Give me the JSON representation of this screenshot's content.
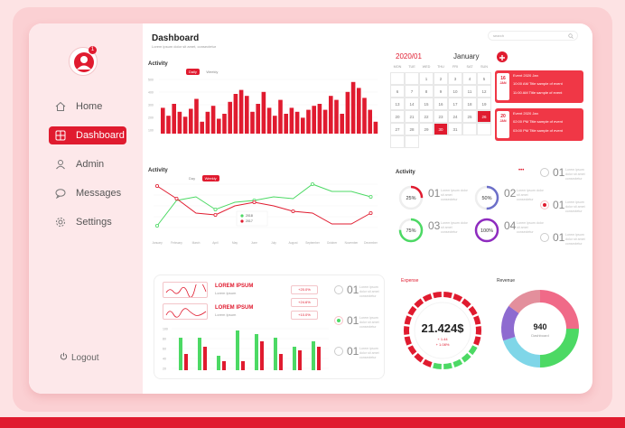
{
  "sidebar": {
    "avatar_badge": "1",
    "items": [
      {
        "label": "Home",
        "icon": "home-icon"
      },
      {
        "label": "Dashboard",
        "icon": "grid-icon"
      },
      {
        "label": "Admin",
        "icon": "user-icon"
      },
      {
        "label": "Messages",
        "icon": "chat-icon"
      },
      {
        "label": "Settings",
        "icon": "gear-icon"
      }
    ],
    "logout": "Logout"
  },
  "header": {
    "title": "Dashboard",
    "subtitle": "Lorem ipsum dolor sit amet, consectetur",
    "search_placeholder": "search"
  },
  "activity_bar": {
    "title": "Activity",
    "toggle": [
      "Daily",
      "Weekly"
    ],
    "y_ticks": [
      "500",
      "400",
      "300",
      "200",
      "100"
    ]
  },
  "activity_line": {
    "title": "Activity",
    "toggle": [
      "Day",
      "Weekly"
    ],
    "x_labels": [
      "January",
      "February",
      "March",
      "April",
      "May",
      "June",
      "July",
      "August",
      "September",
      "October",
      "November",
      "December"
    ],
    "legend": [
      "2018",
      "2017"
    ]
  },
  "calendar": {
    "year_month": "2020/01",
    "month": "January",
    "weekdays": [
      "MON",
      "TUE",
      "WED",
      "THU",
      "FRI",
      "SAT",
      "SUN"
    ],
    "days": [
      "",
      "",
      "1",
      "2",
      "3",
      "4",
      "5",
      "6",
      "7",
      "8",
      "9",
      "10",
      "11",
      "12",
      "13",
      "14",
      "15",
      "16",
      "17",
      "18",
      "19",
      "20",
      "21",
      "22",
      "23",
      "24",
      "25",
      "26",
      "27",
      "28",
      "29",
      "30",
      "31",
      "",
      "",
      "",
      ""
    ],
    "highlighted": [
      "26",
      "30"
    ]
  },
  "events": [
    {
      "day": "16",
      "month": "JAN",
      "line1": "Event 2020 Jan",
      "line2": "Title sample of event",
      "line3": "Title sample of event",
      "time1": "10:00 AM",
      "time2": "11:00 AM"
    },
    {
      "day": "20",
      "month": "JAN",
      "line1": "Event 2020 Jan",
      "line2": "Title sample of event",
      "line3": "Title sample of event",
      "time1": "02:00 PM",
      "time2": "03:00 PM"
    }
  ],
  "activity_rings": {
    "title": "Activity",
    "more": "•••",
    "items": [
      {
        "pct": "25%",
        "num": "01",
        "color": "#e01b2f",
        "value": 25
      },
      {
        "pct": "50%",
        "num": "02",
        "color": "#6c6fc9",
        "value": 50
      },
      {
        "pct": "75%",
        "num": "03",
        "color": "#4cd964",
        "value": 75
      },
      {
        "pct": "100%",
        "num": "04",
        "color": "#8e2bbf",
        "value": 100
      }
    ],
    "desc": "Lorem ipsum dolor sit amet consectetur",
    "radios": [
      "01",
      "01",
      "01"
    ]
  },
  "lorem_cards": [
    {
      "title": "LOREM IPSUM",
      "sub": "Lorem Ipsum"
    },
    {
      "title": "LOREM IPSUM",
      "sub": "Lorem Ipsum"
    }
  ],
  "percents": [
    "+20.0%",
    "+24.6%",
    "+10.0%"
  ],
  "bottom_bar": {
    "y_ticks": [
      "100",
      "80",
      "60",
      "40",
      "20"
    ]
  },
  "right_radios": [
    "01",
    "01",
    "01"
  ],
  "expense": {
    "title": "Expense",
    "value": "21.424$",
    "line1": "+ 1.44",
    "line2": "+ 1.08%"
  },
  "revenue": {
    "title": "Revenue",
    "value": "940",
    "sub": "Dashboard"
  },
  "colors": {
    "accent": "#e01b2f",
    "green": "#4cd964",
    "purple": "#8e2bbf",
    "blue": "#6c6fc9"
  }
}
